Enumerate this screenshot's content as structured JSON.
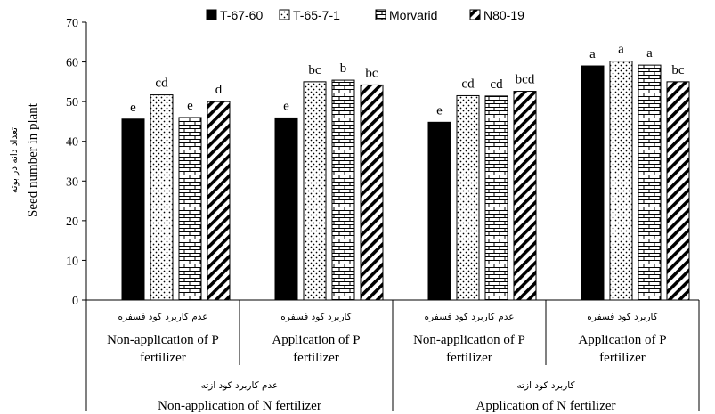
{
  "chart_data": {
    "type": "bar",
    "ylabel": "Seed number in plant",
    "ylabel_fa": "تعداد دانه در بوته",
    "ylim": [
      0,
      70
    ],
    "yticks": [
      0,
      10,
      20,
      30,
      40,
      50,
      60,
      70
    ],
    "grid": false,
    "legend_position": "top",
    "series": [
      {
        "name": "T-67-60",
        "pattern": "solid",
        "values": [
          45.6,
          45.9,
          44.8,
          59.0
        ]
      },
      {
        "name": "T-65-7-1",
        "pattern": "dots",
        "values": [
          51.7,
          55.0,
          51.5,
          60.2
        ]
      },
      {
        "name": "Morvarid",
        "pattern": "brick",
        "values": [
          46.0,
          55.4,
          51.4,
          59.2
        ]
      },
      {
        "name": "N80-19",
        "pattern": "diagonal",
        "values": [
          50.0,
          54.2,
          52.6,
          55.0
        ]
      }
    ],
    "letters": [
      [
        "e",
        "cd",
        "e",
        "d"
      ],
      [
        "e",
        "bc",
        "b",
        "bc"
      ],
      [
        "e",
        "cd",
        "cd",
        "bcd"
      ],
      [
        "a",
        "a",
        "a",
        "bc"
      ]
    ],
    "groups": [
      {
        "fa": "عدم کاربرد کود فسفره",
        "line1": "Non-application of P",
        "line2": "fertilizer"
      },
      {
        "fa": "کاربرد کود فسفره",
        "line1": "Application of P",
        "line2": "fertilizer"
      },
      {
        "fa": "عدم کاربرد کود فسفره",
        "line1": "Non-application of P",
        "line2": "fertilizer"
      },
      {
        "fa": "کاربرد کود فسفره",
        "line1": "Application of P",
        "line2": "fertilizer"
      }
    ],
    "outer_groups": [
      {
        "fa": "عدم کاربرد کود ازته",
        "en": "Non-application of N fertilizer"
      },
      {
        "fa": "کاربرد کود ازته",
        "en": "Application of N fertilizer"
      }
    ],
    "colors": {
      "bar_fill": "#000000",
      "background": "#ffffff",
      "axis": "#000000"
    }
  }
}
